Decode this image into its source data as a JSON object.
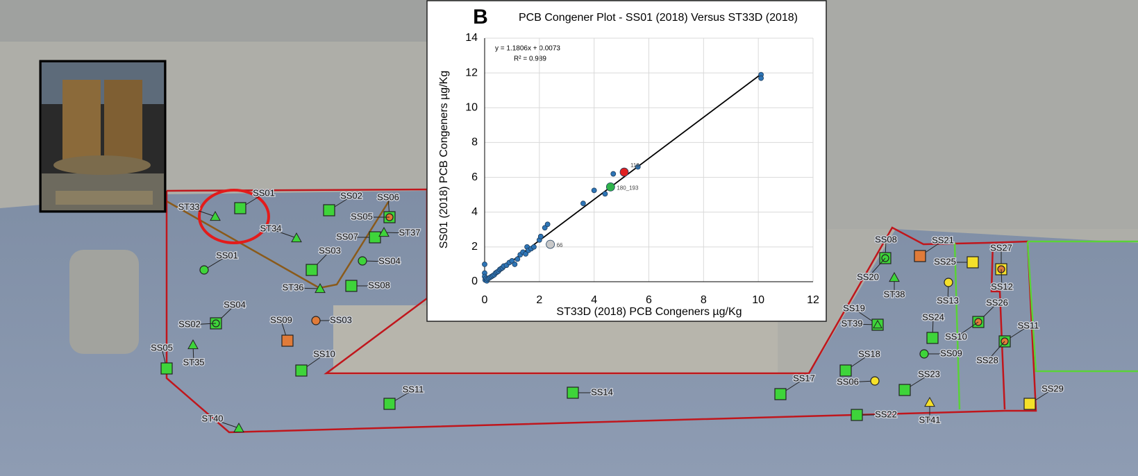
{
  "chart_data": {
    "type": "scatter",
    "panel_label": "B",
    "title": "PCB Congener Plot - SS01 (2018) Versus ST33D (2018)",
    "x_label": "ST33D (2018)  PCB Congeners µg/Kg",
    "y_label": "SS01 (2018) PCB Congeners µg/Kg",
    "equation": "y = 1.1806x + 0.0073",
    "r_squared": "R² = 0.989",
    "trendline": {
      "slope": 1.1806,
      "intercept": 0.0073
    },
    "xlim": [
      0,
      12
    ],
    "xticks": [
      0,
      2,
      4,
      6,
      8,
      10,
      12
    ],
    "ylim": [
      0,
      14
    ],
    "yticks": [
      0,
      2,
      4,
      6,
      8,
      10,
      12,
      14
    ],
    "grid": true,
    "series": [
      {
        "color": "#2e75b6",
        "x": [
          0,
          0,
          0,
          0.02,
          0.05,
          0.08,
          0.1,
          0.15,
          0.2,
          0.25,
          0.3,
          0.35,
          0.4,
          0.45,
          0.5,
          0.55,
          0.6,
          0.65,
          0.7,
          0.8,
          0.9,
          1.0,
          1.1,
          1.2,
          1.3,
          1.4,
          1.5,
          1.55,
          1.6,
          1.7,
          1.8,
          2.0,
          2.05,
          2.2,
          2.3,
          3.6,
          4.0,
          4.4,
          4.7,
          5.6,
          10.1,
          10.1
        ],
        "values": [
          1.0,
          0.5,
          0.3,
          0.1,
          0.2,
          0.05,
          0.15,
          0.2,
          0.25,
          0.3,
          0.35,
          0.4,
          0.5,
          0.55,
          0.6,
          0.7,
          0.75,
          0.8,
          0.9,
          0.95,
          1.1,
          1.2,
          1.0,
          1.3,
          1.55,
          1.7,
          1.6,
          2.0,
          1.8,
          1.9,
          2.0,
          2.4,
          2.6,
          3.1,
          3.3,
          4.5,
          5.25,
          5.05,
          6.2,
          6.6,
          11.9,
          11.7
        ]
      },
      {
        "name": "118",
        "color": "#e02020",
        "x": [
          5.1
        ],
        "values": [
          6.3
        ]
      },
      {
        "name": "180_193",
        "color": "#2fb34a",
        "x": [
          4.6
        ],
        "values": [
          5.45
        ]
      },
      {
        "name": "66",
        "color": "#c8c8c8",
        "x": [
          2.4
        ],
        "values": [
          2.15
        ]
      }
    ]
  },
  "map": {
    "sites": [
      "SS01",
      "ST33",
      "SS02",
      "SS06",
      "SS05",
      "ST34",
      "SS07",
      "ST37",
      "SS03",
      "SS04",
      "SS01",
      "ST36",
      "SS08",
      "SS04",
      "SS02",
      "SS09",
      "SS03",
      "SS05",
      "ST35",
      "SS10",
      "SS11",
      "SS14",
      "ST40",
      "SS17",
      "SS08",
      "SS21",
      "SS27",
      "SS25",
      "SS20",
      "ST38",
      "SS12",
      "SS13",
      "SS26",
      "SS19",
      "ST39",
      "SS24",
      "SS10",
      "SS11",
      "SS18",
      "SS09",
      "SS28",
      "SS06",
      "SS23",
      "SS29",
      "SS22",
      "ST41"
    ]
  }
}
